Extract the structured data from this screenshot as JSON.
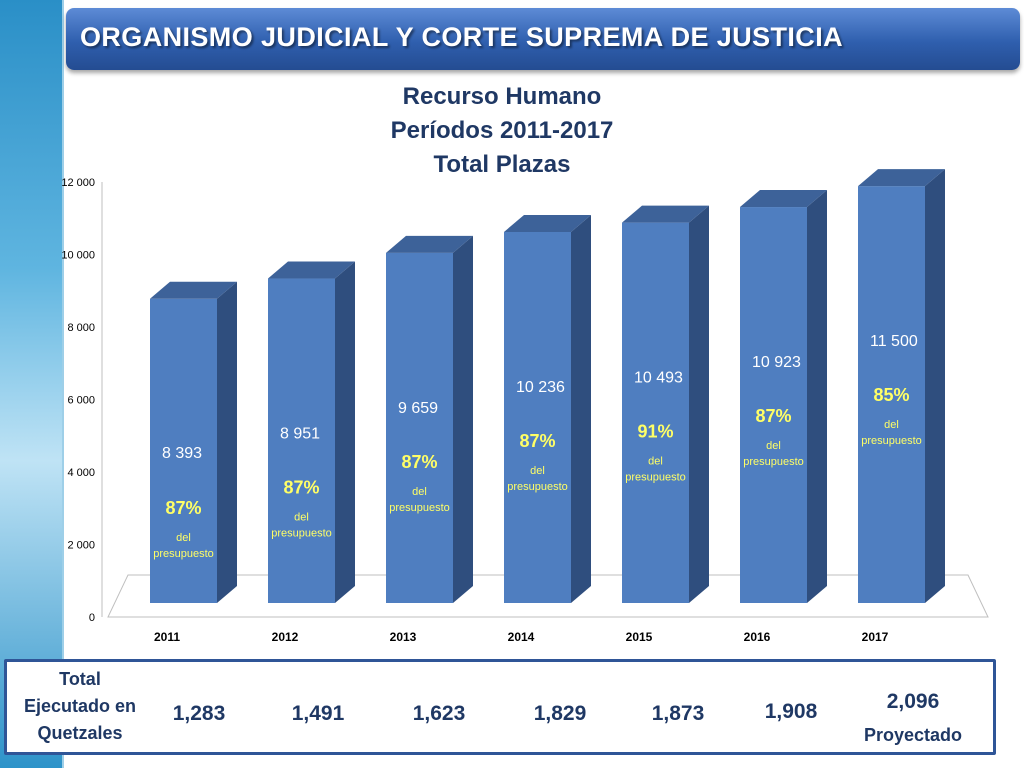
{
  "header": {
    "title": "ORGANISMO JUDICIAL Y CORTE SUPREMA DE JUSTICIA"
  },
  "chart_data": {
    "type": "bar",
    "title_lines": [
      "Recurso Humano",
      "Períodos 2011-2017",
      "Total Plazas"
    ],
    "categories": [
      "2011",
      "2012",
      "2013",
      "2014",
      "2015",
      "2016",
      "2017"
    ],
    "values": [
      8393,
      8951,
      9659,
      10236,
      10493,
      10923,
      11500
    ],
    "value_labels": [
      "8 393",
      "8 951",
      "9 659",
      "10 236",
      "10 493",
      "10 923",
      "11 500"
    ],
    "percent_labels": [
      "87%",
      "87%",
      "87%",
      "87%",
      "91%",
      "87%",
      "85%"
    ],
    "percent_note_line1": "del",
    "percent_note_line2": "presupuesto",
    "ylim": [
      0,
      12000
    ],
    "yticks": [
      0,
      2000,
      4000,
      6000,
      8000,
      10000,
      12000
    ],
    "ytick_labels": [
      "0",
      "2 000",
      "4 000",
      "6 000",
      "8 000",
      "10 000",
      "12 000"
    ],
    "grid": false,
    "style": "3d-column",
    "colors": {
      "bar_front": "#4f7ec0",
      "bar_side": "#2f4e7e",
      "bar_top": "#3d6299",
      "value_text": "#ffffff",
      "percent_text": "#ffff66"
    }
  },
  "executed_table": {
    "label_lines": [
      "Total",
      "Ejecutado en",
      "Quetzales"
    ],
    "values": [
      "1,283",
      "1,491",
      "1,623",
      "1,829",
      "1,873",
      "1,908",
      "2,096"
    ],
    "last_note": "Proyectado"
  },
  "colors": {
    "title_bar": "#2f5fae",
    "title_text": "#ffffff",
    "dark_blue_text": "#1f3864",
    "table_border": "#2f5597"
  }
}
